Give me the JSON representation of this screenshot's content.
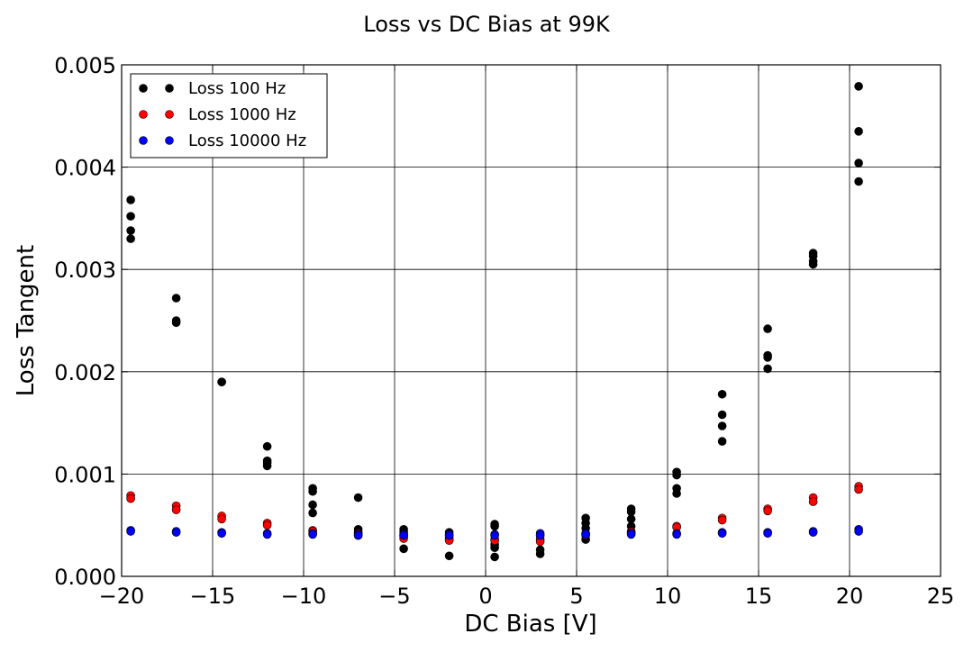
{
  "chart_data": {
    "type": "scatter",
    "title": "Loss vs DC Bias at 99K",
    "xlabel": "DC Bias [V]",
    "ylabel": "Loss Tangent",
    "xlim": [
      -20,
      25
    ],
    "ylim": [
      0,
      0.005
    ],
    "xticks": [
      "−20",
      "−15",
      "−10",
      "−5",
      "0",
      "5",
      "10",
      "15",
      "20",
      "25"
    ],
    "yticks": [
      "0.000",
      "0.001",
      "0.002",
      "0.003",
      "0.004",
      "0.005"
    ],
    "grid": true,
    "legend_position": "top-left",
    "series": [
      {
        "name": "Loss 100 Hz",
        "color": "#000000",
        "points": [
          [
            -19.5,
            0.00368
          ],
          [
            -19.5,
            0.00352
          ],
          [
            -19.5,
            0.00338
          ],
          [
            -19.5,
            0.0033
          ],
          [
            -17.0,
            0.00272
          ],
          [
            -17.0,
            0.0025
          ],
          [
            -17.0,
            0.00248
          ],
          [
            -14.5,
            0.0019
          ],
          [
            -14.5,
            0.0019
          ],
          [
            -12.0,
            0.00127
          ],
          [
            -12.0,
            0.00113
          ],
          [
            -12.0,
            0.00111
          ],
          [
            -12.0,
            0.00108
          ],
          [
            -9.5,
            0.00086
          ],
          [
            -9.5,
            0.00083
          ],
          [
            -9.5,
            0.0007
          ],
          [
            -9.5,
            0.00062
          ],
          [
            -7.0,
            0.00077
          ],
          [
            -7.0,
            0.00046
          ],
          [
            -7.0,
            0.00043
          ],
          [
            -4.5,
            0.00046
          ],
          [
            -4.5,
            0.00043
          ],
          [
            -4.5,
            0.0004
          ],
          [
            -4.5,
            0.00027
          ],
          [
            -2.0,
            0.00043
          ],
          [
            -2.0,
            0.0004
          ],
          [
            -2.0,
            0.00038
          ],
          [
            -2.0,
            0.0002
          ],
          [
            0.5,
            0.00051
          ],
          [
            0.5,
            0.00049
          ],
          [
            0.5,
            0.00031
          ],
          [
            0.5,
            0.00028
          ],
          [
            0.5,
            0.00019
          ],
          [
            3.0,
            0.0004
          ],
          [
            3.0,
            0.00026
          ],
          [
            3.0,
            0.00022
          ],
          [
            5.5,
            0.00057
          ],
          [
            5.5,
            0.00052
          ],
          [
            5.5,
            0.00047
          ],
          [
            5.5,
            0.00041
          ],
          [
            5.5,
            0.00036
          ],
          [
            8.0,
            0.00066
          ],
          [
            8.0,
            0.00063
          ],
          [
            8.0,
            0.00056
          ],
          [
            8.0,
            0.00049
          ],
          [
            10.5,
            0.00102
          ],
          [
            10.5,
            0.00099
          ],
          [
            10.5,
            0.00086
          ],
          [
            10.5,
            0.00081
          ],
          [
            13.0,
            0.00178
          ],
          [
            13.0,
            0.00158
          ],
          [
            13.0,
            0.00147
          ],
          [
            13.0,
            0.00132
          ],
          [
            15.5,
            0.00242
          ],
          [
            15.5,
            0.00216
          ],
          [
            15.5,
            0.00214
          ],
          [
            15.5,
            0.00203
          ],
          [
            18.0,
            0.00316
          ],
          [
            18.0,
            0.00313
          ],
          [
            18.0,
            0.00308
          ],
          [
            18.0,
            0.00305
          ],
          [
            20.5,
            0.00479
          ],
          [
            20.5,
            0.00435
          ],
          [
            20.5,
            0.00404
          ],
          [
            20.5,
            0.00386
          ]
        ]
      },
      {
        "name": "Loss 1000 Hz",
        "color": "#ff0000",
        "points": [
          [
            -19.5,
            0.00079
          ],
          [
            -19.5,
            0.00076
          ],
          [
            -17.0,
            0.00069
          ],
          [
            -17.0,
            0.00065
          ],
          [
            -14.5,
            0.00059
          ],
          [
            -14.5,
            0.00056
          ],
          [
            -12.0,
            0.00052
          ],
          [
            -12.0,
            0.0005
          ],
          [
            -9.5,
            0.00045
          ],
          [
            -9.5,
            0.00044
          ],
          [
            -7.0,
            0.00042
          ],
          [
            -7.0,
            0.0004
          ],
          [
            -4.5,
            0.00039
          ],
          [
            -4.5,
            0.00037
          ],
          [
            -2.0,
            0.00036
          ],
          [
            -2.0,
            0.00035
          ],
          [
            0.5,
            0.00036
          ],
          [
            0.5,
            0.00035
          ],
          [
            3.0,
            0.00036
          ],
          [
            3.0,
            0.00034
          ],
          [
            5.5,
            0.00041
          ],
          [
            5.5,
            0.0004
          ],
          [
            8.0,
            0.00044
          ],
          [
            8.0,
            0.00043
          ],
          [
            10.5,
            0.00049
          ],
          [
            10.5,
            0.00048
          ],
          [
            13.0,
            0.00057
          ],
          [
            13.0,
            0.00055
          ],
          [
            15.5,
            0.00066
          ],
          [
            15.5,
            0.00064
          ],
          [
            18.0,
            0.00077
          ],
          [
            18.0,
            0.00073
          ],
          [
            20.5,
            0.00088
          ],
          [
            20.5,
            0.00085
          ]
        ]
      },
      {
        "name": "Loss 10000 Hz",
        "color": "#0000ff",
        "points": [
          [
            -19.5,
            0.00045
          ],
          [
            -19.5,
            0.00044
          ],
          [
            -17.0,
            0.00044
          ],
          [
            -17.0,
            0.00043
          ],
          [
            -14.5,
            0.00043
          ],
          [
            -14.5,
            0.00042
          ],
          [
            -12.0,
            0.00042
          ],
          [
            -12.0,
            0.00041
          ],
          [
            -9.5,
            0.00042
          ],
          [
            -9.5,
            0.00041
          ],
          [
            -7.0,
            0.00041
          ],
          [
            -7.0,
            0.0004
          ],
          [
            -4.5,
            0.00041
          ],
          [
            -4.5,
            0.0004
          ],
          [
            -2.0,
            0.00041
          ],
          [
            -2.0,
            0.0004
          ],
          [
            0.5,
            0.00041
          ],
          [
            0.5,
            0.0004
          ],
          [
            3.0,
            0.00042
          ],
          [
            3.0,
            0.0004
          ],
          [
            5.5,
            0.00042
          ],
          [
            5.5,
            0.00041
          ],
          [
            8.0,
            0.00042
          ],
          [
            8.0,
            0.00041
          ],
          [
            10.5,
            0.00042
          ],
          [
            10.5,
            0.00041
          ],
          [
            13.0,
            0.00043
          ],
          [
            13.0,
            0.00042
          ],
          [
            15.5,
            0.00043
          ],
          [
            15.5,
            0.00042
          ],
          [
            18.0,
            0.00044
          ],
          [
            18.0,
            0.00043
          ],
          [
            20.5,
            0.00046
          ],
          [
            20.5,
            0.00044
          ]
        ]
      }
    ]
  }
}
